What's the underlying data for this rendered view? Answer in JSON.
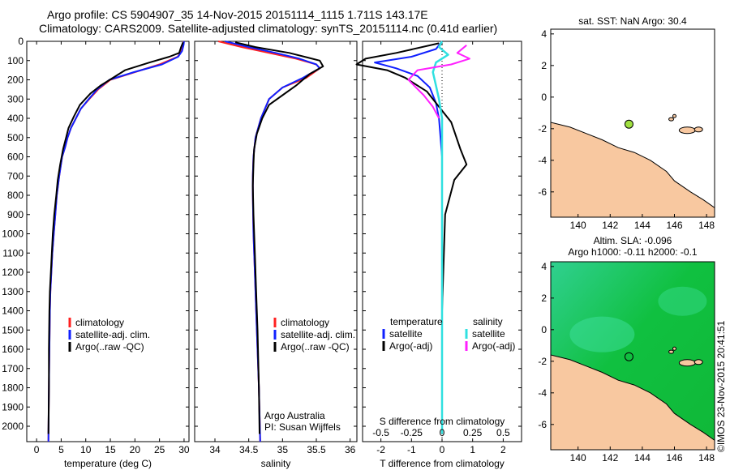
{
  "header": {
    "line1": "Argo profile: CS 5904907_35 14-Nov-2015 20151114_1115 1.711S 143.17E",
    "line2": "Climatology: CARS2009. Satellite-adjusted climatology: synTS_20151114.nc (0.41d earlier)"
  },
  "colors": {
    "climatology": "#ff2020",
    "satellite": "#1020ff",
    "argo": "#000000",
    "satellite_salinity": "#30e0e0",
    "argo_salinity": "#ff20ff",
    "land": "#f8c8a0",
    "dot": "#a0e040"
  },
  "chart_data": [
    {
      "type": "line",
      "xlabel": "temperature (deg C)",
      "xlim": [
        -2,
        31
      ],
      "xticks": [
        0,
        5,
        10,
        15,
        20,
        25,
        30
      ],
      "ylim": [
        0,
        2080
      ],
      "yticks": [
        0,
        100,
        200,
        300,
        400,
        500,
        600,
        700,
        800,
        900,
        1000,
        1100,
        1200,
        1300,
        1400,
        1500,
        1600,
        1700,
        1800,
        1900,
        2000
      ],
      "legend": [
        "climatology",
        "satellite-adj. clim.",
        "Argo(..raw -QC)"
      ],
      "series": [
        {
          "name": "climatology",
          "x": [
            29.9,
            29.8,
            29.5,
            28.7,
            25.0,
            20.0,
            15.0,
            12.5,
            10.7,
            9.0,
            8.0,
            7.0,
            6.3,
            5.8,
            5.2,
            4.6,
            4.1,
            3.8,
            3.5,
            3.2,
            3.0,
            2.8,
            2.7,
            2.6,
            2.5,
            2.4
          ],
          "y": [
            0,
            20,
            50,
            80,
            120,
            160,
            200,
            250,
            300,
            350,
            400,
            450,
            500,
            550,
            600,
            700,
            800,
            900,
            1000,
            1100,
            1200,
            1300,
            1400,
            1600,
            1800,
            2080
          ]
        },
        {
          "name": "satellite-adj. clim.",
          "x": [
            30.0,
            29.9,
            29.6,
            28.8,
            25.5,
            19.8,
            14.8,
            12.3,
            10.6,
            9.0,
            8.0,
            7.0,
            6.3,
            5.8,
            5.2,
            4.6,
            4.1,
            3.8,
            3.5,
            3.2,
            3.0,
            2.8,
            2.7,
            2.6,
            2.5,
            2.4
          ],
          "y": [
            0,
            20,
            50,
            80,
            120,
            160,
            200,
            250,
            300,
            350,
            400,
            450,
            500,
            550,
            600,
            700,
            800,
            900,
            1000,
            1100,
            1200,
            1300,
            1400,
            1600,
            1800,
            2080
          ]
        },
        {
          "name": "Argo(..raw -QC)",
          "x": [
            29.8,
            29.4,
            29.0,
            27.0,
            23.0,
            18.0,
            15.5,
            13.0,
            11.0,
            8.8,
            7.6,
            6.5,
            6.0,
            5.4,
            4.8,
            4.3,
            4.0,
            3.6,
            3.3,
            3.1,
            2.9,
            2.7,
            2.6,
            2.5,
            2.5,
            2.4
          ],
          "y": [
            5,
            30,
            60,
            80,
            110,
            150,
            190,
            230,
            270,
            330,
            390,
            450,
            500,
            560,
            640,
            720,
            800,
            900,
            1000,
            1100,
            1200,
            1300,
            1400,
            1600,
            1800,
            2040
          ]
        }
      ]
    },
    {
      "type": "line",
      "xlabel": "salinity",
      "xlim": [
        33.7,
        36.1
      ],
      "xticks": [
        34,
        34.5,
        35,
        35.5,
        36
      ],
      "ylim": [
        0,
        2080
      ],
      "legend": [
        "climatology",
        "satellite-adj. clim.",
        "Argo(..raw -QC)"
      ],
      "annotation": [
        "Argo Australia",
        "PI: Susan Wijffels"
      ],
      "series": [
        {
          "name": "climatology",
          "x": [
            34.05,
            34.4,
            34.8,
            35.2,
            35.5,
            35.55,
            35.35,
            35.0,
            34.8,
            34.68,
            34.6,
            34.57,
            34.56,
            34.56,
            34.57,
            34.59,
            34.61,
            34.63,
            34.65,
            34.67
          ],
          "y": [
            0,
            30,
            60,
            90,
            120,
            140,
            190,
            240,
            300,
            400,
            500,
            600,
            700,
            800,
            1000,
            1200,
            1400,
            1600,
            1800,
            2080
          ]
        },
        {
          "name": "satellite-adj. clim.",
          "x": [
            34.15,
            34.5,
            34.9,
            35.25,
            35.5,
            35.55,
            35.3,
            35.0,
            34.8,
            34.68,
            34.6,
            34.57,
            34.56,
            34.56,
            34.57,
            34.59,
            34.61,
            34.63,
            34.65,
            34.67
          ],
          "y": [
            0,
            30,
            60,
            90,
            120,
            140,
            190,
            240,
            300,
            400,
            500,
            600,
            700,
            800,
            1000,
            1200,
            1400,
            1600,
            1800,
            2080
          ]
        },
        {
          "name": "Argo(..raw -QC)",
          "x": [
            34.3,
            34.6,
            35.1,
            35.55,
            35.6,
            35.4,
            35.2,
            35.0,
            34.8,
            34.7,
            34.62,
            34.58,
            34.57,
            34.56,
            34.57,
            34.59,
            34.61,
            34.63,
            34.65,
            34.66
          ],
          "y": [
            5,
            30,
            60,
            100,
            130,
            170,
            230,
            280,
            330,
            400,
            480,
            560,
            640,
            750,
            900,
            1100,
            1300,
            1500,
            1800,
            2040
          ]
        }
      ]
    },
    {
      "type": "line",
      "xlabel": "T difference from climatology",
      "xlabel2": "S difference from climatology",
      "xlim": [
        -2.6,
        2.6
      ],
      "xticks": [
        -2,
        -1,
        0,
        1,
        2
      ],
      "xticks2_labels": [
        "-0.5",
        "-0.25",
        "0",
        "0.25",
        "0.5"
      ],
      "xticks2_at": [
        -2,
        -1,
        0,
        1,
        2
      ],
      "ylim": [
        0,
        2080
      ],
      "legend_left_title": "temperature",
      "legend_left": [
        "satellite",
        "Argo(-adj)"
      ],
      "legend_right_title": "salinity",
      "legend_right": [
        "satellite",
        "Argo(-adj)"
      ],
      "series": [
        {
          "name": "T satellite",
          "x": [
            0.0,
            -0.2,
            -1.0,
            -2.2,
            -1.5,
            -0.8,
            -0.4,
            -0.2,
            -0.1,
            0.0,
            0.0,
            0.0,
            0.0
          ],
          "y": [
            0,
            40,
            80,
            110,
            140,
            180,
            240,
            320,
            400,
            600,
            1000,
            1600,
            2040
          ]
        },
        {
          "name": "T Argo(-adj)",
          "x": [
            -0.1,
            -1.5,
            -2.5,
            -2.8,
            -1.8,
            -1.2,
            -0.5,
            0.3,
            0.6,
            0.8,
            0.4,
            0.1,
            0.0,
            0.0
          ],
          "y": [
            10,
            60,
            90,
            120,
            150,
            190,
            260,
            420,
            560,
            640,
            720,
            900,
            1400,
            2040
          ]
        },
        {
          "name": "S satellite",
          "x": [
            0.0,
            -0.1,
            0.2,
            -0.2,
            -0.3,
            -0.2,
            -0.1,
            0.0,
            0.0,
            0.0,
            0.0
          ],
          "y": [
            0,
            30,
            70,
            110,
            160,
            230,
            300,
            400,
            800,
            1400,
            2040
          ]
        },
        {
          "name": "S Argo(-adj)",
          "x": [
            0.8,
            0.5,
            0.9,
            0.3,
            -0.8,
            -1.1,
            -0.6,
            -0.3,
            -0.1
          ],
          "y": [
            20,
            60,
            90,
            120,
            150,
            200,
            280,
            340,
            400
          ]
        }
      ]
    },
    {
      "type": "scatter",
      "title": "sat. SST: NaN Argo: 30.4",
      "xlim": [
        138.3,
        148.5
      ],
      "xticks": [
        140,
        142,
        144,
        146,
        148
      ],
      "ylim": [
        -7.6,
        4.3
      ],
      "yticks": [
        4,
        2,
        0,
        -2,
        -4,
        -6
      ],
      "point": {
        "x": 143.17,
        "y": -1.711
      }
    },
    {
      "type": "heatmap",
      "title": [
        "Altim. SLA: -0.096",
        "Argo h1000: -0.11 h2000: -0.1"
      ],
      "xlim": [
        138.3,
        148.5
      ],
      "xticks": [
        140,
        142,
        144,
        146,
        148
      ],
      "ylim": [
        -7.6,
        4.3
      ],
      "yticks": [
        4,
        2,
        0,
        -2,
        -4,
        -6
      ],
      "point": {
        "x": 143.17,
        "y": -1.711
      }
    }
  ],
  "watermark": "©IMOS 23-Nov-2015 20:41:51"
}
